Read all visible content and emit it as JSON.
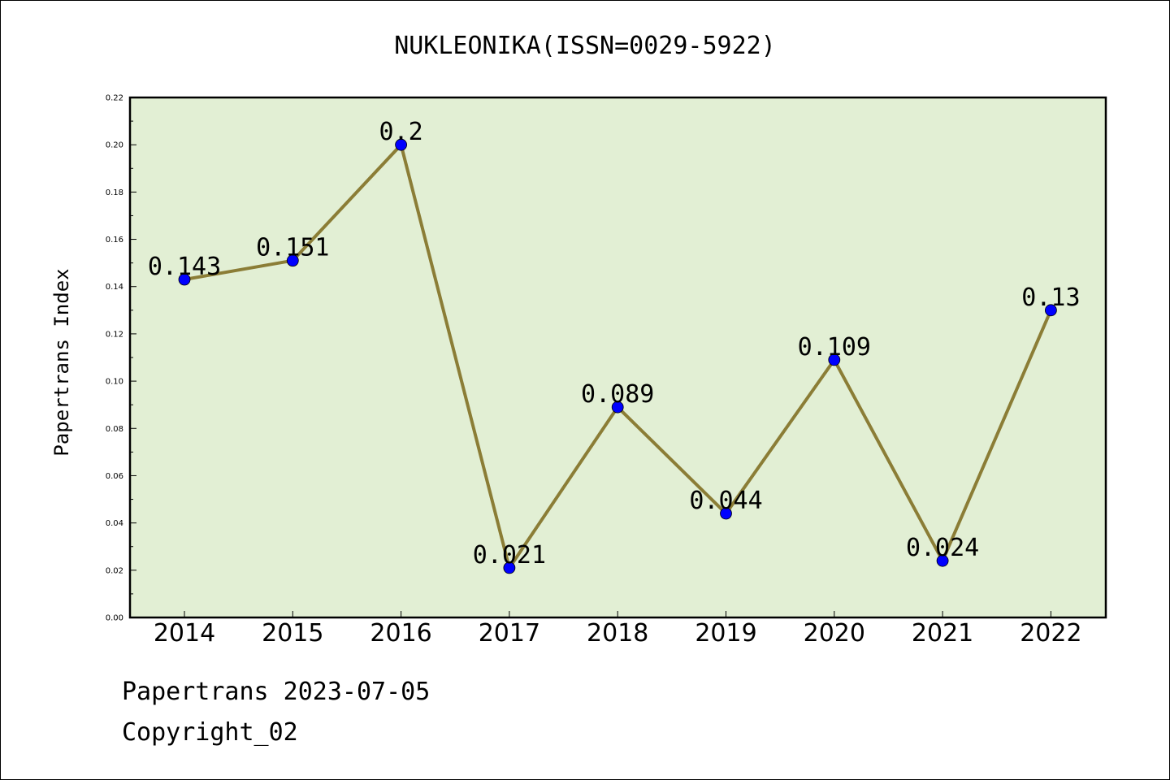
{
  "chart_data": {
    "type": "line",
    "title": "NUKLEONIKA(ISSN=0029-5922)",
    "ylabel": "Papertrans Index",
    "xlabel": "",
    "categories": [
      "2014",
      "2015",
      "2016",
      "2017",
      "2018",
      "2019",
      "2020",
      "2021",
      "2022"
    ],
    "values": [
      0.143,
      0.151,
      0.2,
      0.021,
      0.089,
      0.044,
      0.109,
      0.024,
      0.13
    ],
    "data_labels": [
      "0.143",
      "0.151",
      "0.2",
      "0.021",
      "0.089",
      "0.044",
      "0.109",
      "0.024",
      "0.13"
    ],
    "ylim": [
      0,
      0.22
    ],
    "yticks": [
      "0.00",
      "0.02",
      "0.04",
      "0.06",
      "0.08",
      "0.10",
      "0.12",
      "0.14",
      "0.16",
      "0.18",
      "0.20",
      "0.22"
    ],
    "grid": false,
    "colors": {
      "plot_bg": "#e2efd4",
      "line": "#8b7d36",
      "marker": "#0000ff"
    }
  },
  "footer": {
    "date_line": "Papertrans 2023-07-05",
    "copyright": "Copyright_02"
  }
}
